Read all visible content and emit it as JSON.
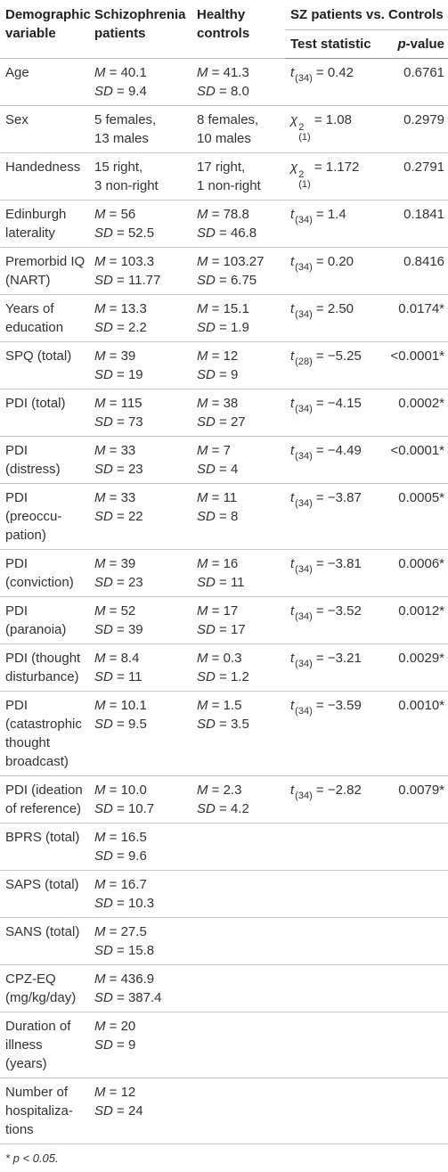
{
  "header": {
    "variable": [
      "Demographic",
      "variable"
    ],
    "sz": [
      "Schizophrenia",
      "patients"
    ],
    "hc": [
      "Healthy",
      "controls"
    ],
    "comparison": "SZ patients vs. Controls",
    "test_statistic": "Test statistic",
    "p_value": "p-value"
  },
  "rows": [
    {
      "variable": [
        "Age"
      ],
      "sz": [
        "M = 40.1",
        "SD = 9.4"
      ],
      "hc": [
        "M = 41.3",
        "SD = 8.0"
      ],
      "stat": {
        "symbol": "t",
        "sub": "(34)",
        "value": "= 0.42"
      },
      "p": "0.6761"
    },
    {
      "variable": [
        "Sex"
      ],
      "sz": [
        "5 females,",
        "13 males"
      ],
      "hc": [
        "8 females,",
        "10 males"
      ],
      "stat": {
        "symbol": "χ",
        "sup": "2",
        "sub": "(1)",
        "value": "= 1.08"
      },
      "p": "0.2979"
    },
    {
      "variable": [
        "Handedness"
      ],
      "sz": [
        "15 right,",
        "3 non-right"
      ],
      "hc": [
        "17 right,",
        "1 non-right"
      ],
      "stat": {
        "symbol": "χ",
        "sup": "2",
        "sub": "(1)",
        "value": "= 1.172"
      },
      "p": "0.2791"
    },
    {
      "variable": [
        "Edinburgh",
        "laterality"
      ],
      "sz": [
        "M = 56",
        "SD = 52.5"
      ],
      "hc": [
        "M = 78.8",
        "SD = 46.8"
      ],
      "stat": {
        "symbol": "t",
        "sub": "(34)",
        "value": "= 1.4"
      },
      "p": "0.1841"
    },
    {
      "variable": [
        "Premorbid IQ",
        "(NART)"
      ],
      "sz": [
        "M = 103.3",
        "SD = 11.77"
      ],
      "hc": [
        "M = 103.27",
        "SD = 6.75"
      ],
      "stat": {
        "symbol": "t",
        "sub": "(34)",
        "value": "= 0.20"
      },
      "p": "0.8416"
    },
    {
      "variable": [
        "Years of",
        "education"
      ],
      "sz": [
        "M = 13.3",
        "SD = 2.2"
      ],
      "hc": [
        "M = 15.1",
        "SD = 1.9"
      ],
      "stat": {
        "symbol": "t",
        "sub": "(34)",
        "value": "= 2.50"
      },
      "p": "0.0174*"
    },
    {
      "variable": [
        "SPQ (total)"
      ],
      "sz": [
        "M = 39",
        "SD = 19"
      ],
      "hc": [
        "M = 12",
        "SD = 9"
      ],
      "stat": {
        "symbol": "t",
        "sub": "(28)",
        "value": "= −5.25"
      },
      "p": "<0.0001*"
    },
    {
      "variable": [
        "PDI (total)"
      ],
      "sz": [
        "M = 115",
        "SD = 73"
      ],
      "hc": [
        "M = 38",
        "SD = 27"
      ],
      "stat": {
        "symbol": "t",
        "sub": "(34)",
        "value": "= −4.15"
      },
      "p": "0.0002*"
    },
    {
      "variable": [
        "PDI (distress)"
      ],
      "sz": [
        "M = 33",
        "SD = 23"
      ],
      "hc": [
        "M = 7",
        "SD = 4"
      ],
      "stat": {
        "symbol": "t",
        "sub": "(34)",
        "value": "= −4.49"
      },
      "p": "<0.0001*"
    },
    {
      "variable": [
        "PDI (preoccu-",
        "pation)"
      ],
      "sz": [
        "M = 33",
        "SD = 22"
      ],
      "hc": [
        "M = 11",
        "SD = 8"
      ],
      "stat": {
        "symbol": "t",
        "sub": "(34)",
        "value": "= −3.87"
      },
      "p": "0.0005*"
    },
    {
      "variable": [
        "PDI",
        "(conviction)"
      ],
      "sz": [
        "M = 39",
        "SD = 23"
      ],
      "hc": [
        "M = 16",
        "SD = 11"
      ],
      "stat": {
        "symbol": "t",
        "sub": "(34)",
        "value": "= −3.81"
      },
      "p": "0.0006*"
    },
    {
      "variable": [
        "PDI",
        "(paranoia)"
      ],
      "sz": [
        "M = 52",
        "SD = 39"
      ],
      "hc": [
        "M = 17",
        "SD = 17"
      ],
      "stat": {
        "symbol": "t",
        "sub": "(34)",
        "value": "= −3.52"
      },
      "p": "0.0012*"
    },
    {
      "variable": [
        "PDI (thought",
        "disturbance)"
      ],
      "sz": [
        "M = 8.4",
        "SD = 11"
      ],
      "hc": [
        "M = 0.3",
        "SD = 1.2"
      ],
      "stat": {
        "symbol": "t",
        "sub": "(34)",
        "value": "= −3.21"
      },
      "p": "0.0029*"
    },
    {
      "variable": [
        "PDI",
        "(catastrophic",
        "thought",
        "broadcast)"
      ],
      "sz": [
        "M = 10.1",
        "SD = 9.5"
      ],
      "hc": [
        "M = 1.5",
        "SD = 3.5"
      ],
      "stat": {
        "symbol": "t",
        "sub": "(34)",
        "value": "= −3.59"
      },
      "p": "0.0010*"
    },
    {
      "variable": [
        "PDI (ideation",
        "of reference)"
      ],
      "sz": [
        "M = 10.0",
        "SD = 10.7"
      ],
      "hc": [
        "M = 2.3",
        "SD = 4.2"
      ],
      "stat": {
        "symbol": "t",
        "sub": "(34)",
        "value": "= −2.82"
      },
      "p": "0.0079*"
    },
    {
      "variable": [
        "BPRS (total)"
      ],
      "sz": [
        "M = 16.5",
        "SD = 9.6"
      ]
    },
    {
      "variable": [
        "SAPS (total)"
      ],
      "sz": [
        "M = 16.7",
        "SD = 10.3"
      ]
    },
    {
      "variable": [
        "SANS (total)"
      ],
      "sz": [
        "M = 27.5",
        "SD = 15.8"
      ]
    },
    {
      "variable": [
        "CPZ-EQ",
        "(mg/kg/day)"
      ],
      "sz": [
        "M = 436.9",
        "SD = 387.4"
      ]
    },
    {
      "variable": [
        "Duration of",
        "illness (years)"
      ],
      "sz": [
        "M = 20",
        "SD = 9"
      ]
    },
    {
      "variable": [
        "Number of",
        "hospitaliza-",
        "tions"
      ],
      "sz": [
        "M = 12",
        "SD = 24"
      ]
    }
  ],
  "footnote": "* p < 0.05."
}
